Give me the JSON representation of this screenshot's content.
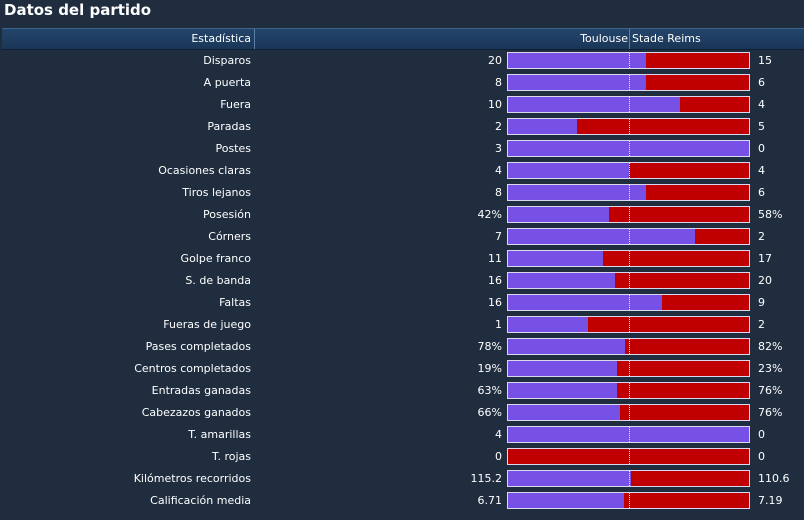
{
  "title": "Datos del partido",
  "header": {
    "stat_label": "Estadística",
    "home_team": "Toulouse",
    "away_team": "Stade Reims"
  },
  "colors": {
    "home": "#7750e6",
    "away": "#c00000",
    "background": "#1f2d3f",
    "header": "#1d3b5e"
  },
  "rows": [
    {
      "label": "Disparos",
      "home": "20",
      "away": "15",
      "home_share": 0.5714
    },
    {
      "label": "A puerta",
      "home": "8",
      "away": "6",
      "home_share": 0.5714
    },
    {
      "label": "Fuera",
      "home": "10",
      "away": "4",
      "home_share": 0.7143
    },
    {
      "label": "Paradas",
      "home": "2",
      "away": "5",
      "home_share": 0.2857
    },
    {
      "label": "Postes",
      "home": "3",
      "away": "0",
      "home_share": 1.0
    },
    {
      "label": "Ocasiones claras",
      "home": "4",
      "away": "4",
      "home_share": 0.5
    },
    {
      "label": "Tiros lejanos",
      "home": "8",
      "away": "6",
      "home_share": 0.5714
    },
    {
      "label": "Posesión",
      "home": "42%",
      "away": "58%",
      "home_share": 0.42
    },
    {
      "label": "Córners",
      "home": "7",
      "away": "2",
      "home_share": 0.7778
    },
    {
      "label": "Golpe franco",
      "home": "11",
      "away": "17",
      "home_share": 0.3929
    },
    {
      "label": "S. de banda",
      "home": "16",
      "away": "20",
      "home_share": 0.4444
    },
    {
      "label": "Faltas",
      "home": "16",
      "away": "9",
      "home_share": 0.64
    },
    {
      "label": "Fueras de juego",
      "home": "1",
      "away": "2",
      "home_share": 0.3333
    },
    {
      "label": "Pases completados",
      "home": "78%",
      "away": "82%",
      "home_share": 0.4875
    },
    {
      "label": "Centros completados",
      "home": "19%",
      "away": "23%",
      "home_share": 0.4524
    },
    {
      "label": "Entradas ganadas",
      "home": "63%",
      "away": "76%",
      "home_share": 0.4532
    },
    {
      "label": "Cabezazos ganados",
      "home": "66%",
      "away": "76%",
      "home_share": 0.4648
    },
    {
      "label": "T. amarillas",
      "home": "4",
      "away": "0",
      "home_share": 1.0
    },
    {
      "label": "T. rojas",
      "home": "0",
      "away": "0",
      "home_share": 0.0
    },
    {
      "label": "Kilómetros recorridos",
      "home": "115.2",
      "away": "110.6",
      "home_share": 0.5102
    },
    {
      "label": "Calificación media",
      "home": "6.71",
      "away": "7.19",
      "home_share": 0.4827
    }
  ]
}
